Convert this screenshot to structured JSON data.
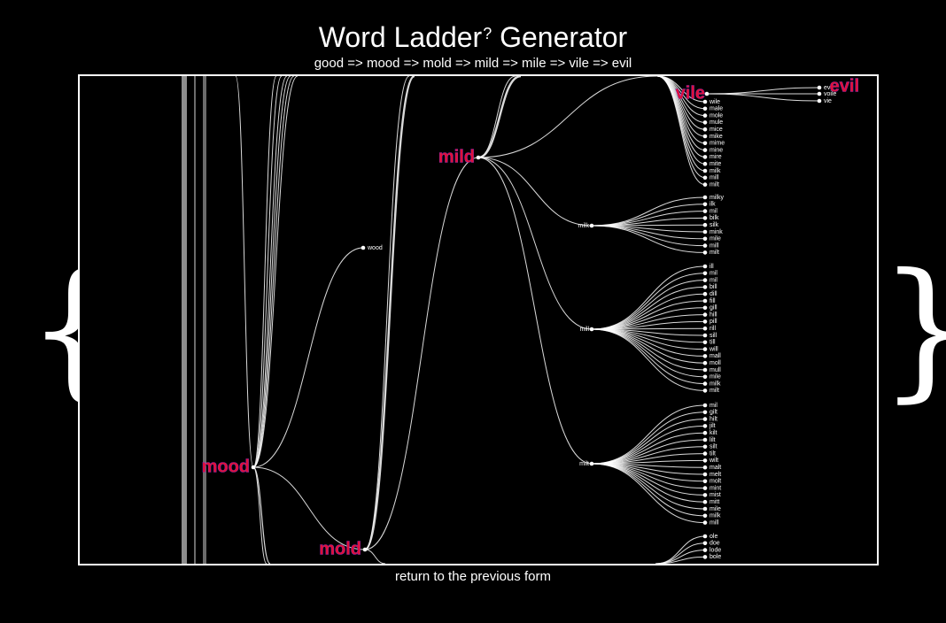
{
  "header": {
    "title": "Word Ladder",
    "title_sup": "?",
    "title_tail": "Generator",
    "ladder_path": "good => mood => mold => mild => mile => vile => evil"
  },
  "decor": {
    "left_brace": "{",
    "right_brace": "}"
  },
  "footer": {
    "return_label": "return to the previous form"
  },
  "tree": {
    "highlight_color": "#e0103a",
    "line_color": "#ffffff",
    "main_nodes": [
      "mood",
      "mold",
      "mild",
      "vile",
      "evil"
    ],
    "leaf_wood": "wood",
    "vile_children": [
      "evil",
      "voile",
      "vie"
    ],
    "vile_siblings": [
      "wile",
      "male",
      "mole",
      "mule",
      "mice",
      "mike",
      "mime",
      "mine",
      "mire",
      "mite",
      "milk",
      "mill",
      "milt"
    ],
    "clusters": [
      {
        "label": "milk",
        "items": [
          "milky",
          "ilk",
          "mil",
          "bilk",
          "silk",
          "mink",
          "mile",
          "mill",
          "milt"
        ]
      },
      {
        "label": "mill",
        "items": [
          "ill",
          "mil",
          "mil",
          "bill",
          "dill",
          "fill",
          "gill",
          "hill",
          "pill",
          "rill",
          "sill",
          "till",
          "will",
          "mall",
          "moll",
          "mull",
          "mile",
          "milk",
          "milt"
        ]
      },
      {
        "label": "milt",
        "items": [
          "mil",
          "gilt",
          "hilt",
          "jilt",
          "kilt",
          "lilt",
          "silt",
          "tilt",
          "wilt",
          "malt",
          "melt",
          "molt",
          "mint",
          "mist",
          "mitt",
          "mile",
          "milk",
          "mill"
        ]
      },
      {
        "label": "",
        "items": [
          "ole",
          "doe",
          "lode",
          "bole"
        ]
      }
    ]
  }
}
